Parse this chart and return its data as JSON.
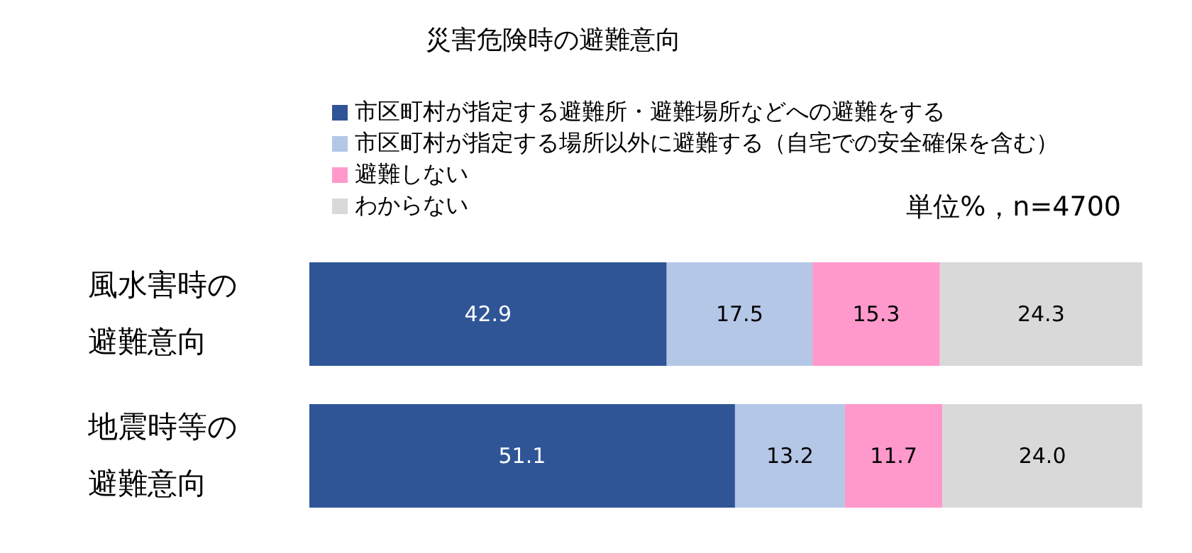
{
  "chart_data": {
    "type": "bar",
    "orientation": "horizontal",
    "stacked": true,
    "legend": "top",
    "xlim": [
      0,
      100
    ],
    "title": "災害危険時の避難意向",
    "annotations": [
      "単位%，n=4700"
    ],
    "categories": [
      "風水害時の避難意向",
      "地震時等の避難意向"
    ],
    "series": [
      {
        "name": "市区町村が指定する避難所・避難場所などへの避難をする",
        "color": "#2f5597",
        "values": [
          42.9,
          51.1
        ],
        "value_labels": [
          "42.9",
          "51.1"
        ]
      },
      {
        "name": "市区町村が指定する場所以外に避難する（自宅での安全確保を含む）",
        "color": "#b4c7e7",
        "values": [
          17.5,
          13.2
        ],
        "value_labels": [
          "17.5",
          "13.2"
        ]
      },
      {
        "name": "避難しない",
        "color": "#ff99cc",
        "values": [
          15.3,
          11.7
        ],
        "value_labels": [
          "15.3",
          "11.7"
        ]
      },
      {
        "name": "わからない",
        "color": "#d9d9d9",
        "values": [
          24.3,
          24.0
        ],
        "value_labels": [
          "24.3",
          "24.0"
        ]
      }
    ]
  }
}
